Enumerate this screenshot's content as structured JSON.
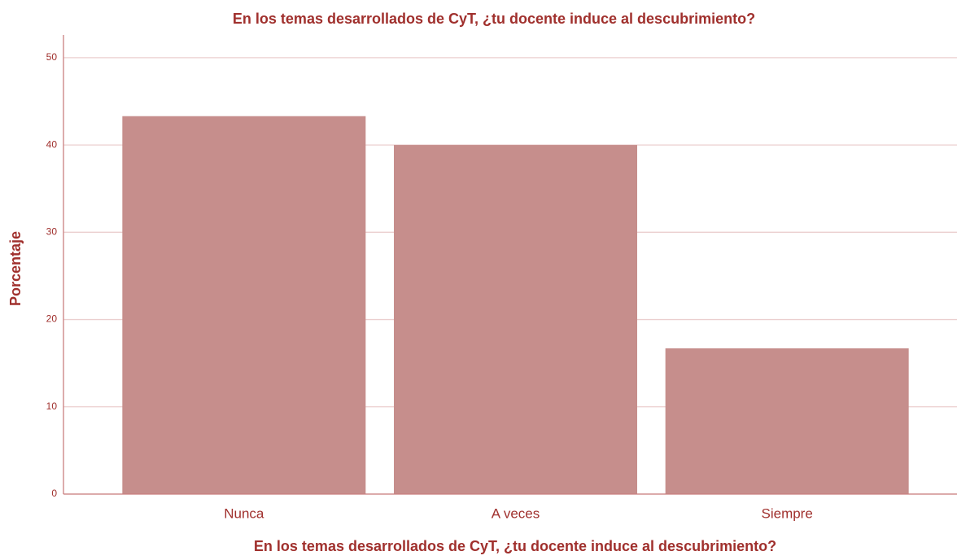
{
  "chart_data": {
    "type": "bar",
    "title": "En los temas desarrollados de CyT, ¿tu docente induce al descubrimiento?",
    "x_label": "En los temas desarrollados de CyT, ¿tu docente induce al descubrimiento?",
    "y_label": "Porcentaje",
    "categories": [
      "Nunca",
      "A veces",
      "Siempre"
    ],
    "values": [
      43.3,
      40.0,
      16.7
    ],
    "color": "#c68e8c",
    "ylim": [
      0,
      52.6
    ],
    "yticks": [
      0,
      10,
      20,
      30,
      40,
      50
    ],
    "grid": true
  }
}
